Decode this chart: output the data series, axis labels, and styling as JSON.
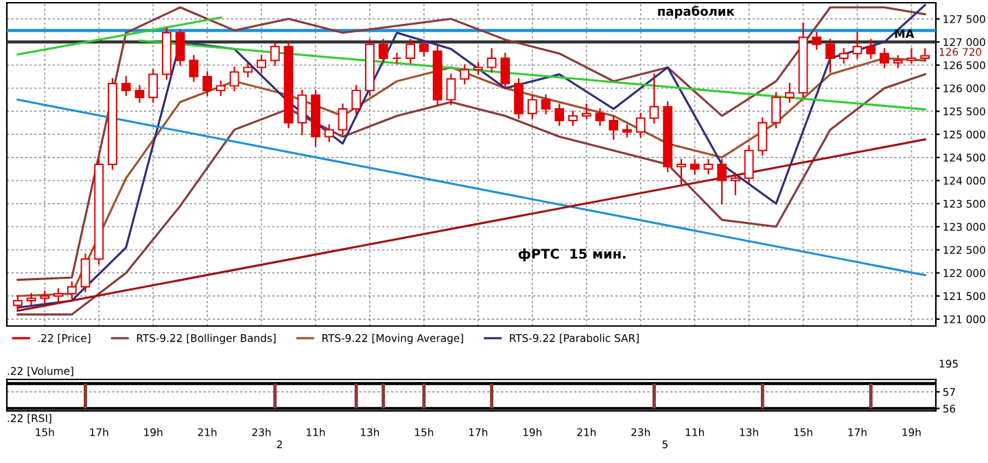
{
  "chart_data": [
    {
      "type": "candlestick",
      "categories": [
        null,
        null,
        null,
        null,
        null,
        null,
        null,
        null,
        null,
        null,
        null,
        null,
        null,
        null,
        null,
        null,
        null,
        null,
        null,
        null,
        null,
        null,
        null,
        null,
        null,
        null,
        null,
        null,
        null,
        null,
        null,
        null,
        null,
        null,
        null,
        null,
        null,
        null,
        null,
        null,
        null,
        null,
        null,
        null,
        null,
        null,
        null,
        null,
        null,
        null,
        null,
        null,
        null,
        null,
        null,
        null,
        null,
        null,
        null,
        null,
        null,
        null,
        null,
        null,
        null,
        null,
        null,
        null
      ],
      "series": [
        {
          "type": "candlestick",
          "name": ".22 [Price]",
          "color": "#e00000",
          "ohlc": [
            [
              121300,
              121500,
              121200,
              121400
            ],
            [
              121400,
              121550,
              121300,
              121450
            ],
            [
              121450,
              121600,
              121350,
              121500
            ],
            [
              121500,
              121650,
              121400,
              121550
            ],
            [
              121550,
              121800,
              121450,
              121700
            ],
            [
              121700,
              122400,
              121600,
              122300
            ],
            [
              122300,
              124450,
              122200,
              124350
            ],
            [
              124350,
              126200,
              124250,
              126100
            ],
            [
              126100,
              126250,
              125850,
              125950
            ],
            [
              125950,
              126050,
              125700,
              125800
            ],
            [
              125800,
              126400,
              125700,
              126300
            ],
            [
              126300,
              127300,
              126200,
              127200
            ],
            [
              127200,
              127250,
              126500,
              126600
            ],
            [
              126600,
              126700,
              126150,
              126250
            ],
            [
              126250,
              126350,
              125850,
              125950
            ],
            [
              125950,
              126150,
              125850,
              126050
            ],
            [
              126050,
              126450,
              125950,
              126350
            ],
            [
              126350,
              126550,
              126250,
              126450
            ],
            [
              126450,
              126700,
              126350,
              126600
            ],
            [
              126600,
              127000,
              126500,
              126900
            ],
            [
              126900,
              127000,
              125150,
              125250
            ],
            [
              125250,
              125950,
              125000,
              125850
            ],
            [
              125850,
              125950,
              124750,
              124950
            ],
            [
              124950,
              125200,
              124850,
              125100
            ],
            [
              125100,
              125650,
              125000,
              125550
            ],
            [
              125550,
              126050,
              125450,
              125950
            ],
            [
              125950,
              127050,
              125850,
              126950
            ],
            [
              126950,
              127050,
              126550,
              126650
            ],
            [
              126650,
              126750,
              126550,
              126650
            ],
            [
              126650,
              127050,
              126550,
              126950
            ],
            [
              126950,
              127000,
              126700,
              126800
            ],
            [
              126800,
              126900,
              125650,
              125750
            ],
            [
              125750,
              126300,
              125650,
              126200
            ],
            [
              126200,
              126500,
              126100,
              126400
            ],
            [
              126400,
              126550,
              126300,
              126450
            ],
            [
              126450,
              126850,
              126350,
              126650
            ],
            [
              126650,
              126750,
              126000,
              126100
            ],
            [
              126100,
              126200,
              125350,
              125450
            ],
            [
              125450,
              125850,
              125350,
              125750
            ],
            [
              125750,
              125850,
              125450,
              125550
            ],
            [
              125550,
              125650,
              125200,
              125300
            ],
            [
              125300,
              125500,
              125200,
              125400
            ],
            [
              125400,
              125650,
              125350,
              125450
            ],
            [
              125450,
              125550,
              125200,
              125300
            ],
            [
              125300,
              125400,
              124900,
              125100
            ],
            [
              125100,
              125200,
              124950,
              125050
            ],
            [
              125050,
              125450,
              124950,
              125350
            ],
            [
              125350,
              126300,
              125250,
              125600
            ],
            [
              125600,
              125700,
              124200,
              124300
            ],
            [
              124300,
              124450,
              123900,
              124350
            ],
            [
              124350,
              124450,
              124150,
              124250
            ],
            [
              124250,
              124450,
              124150,
              124350
            ],
            [
              124350,
              124450,
              123500,
              124000
            ],
            [
              124000,
              124150,
              123700,
              124050
            ],
            [
              124050,
              124750,
              123950,
              124650
            ],
            [
              124650,
              125350,
              124550,
              125250
            ],
            [
              125250,
              125900,
              125150,
              125800
            ],
            [
              125800,
              126100,
              125700,
              125900
            ],
            [
              125900,
              127400,
              125800,
              127100
            ],
            [
              127100,
              127200,
              126850,
              126950
            ],
            [
              126950,
              127050,
              126350,
              126650
            ],
            [
              126650,
              126850,
              126550,
              126750
            ],
            [
              126750,
              127200,
              126650,
              126900
            ],
            [
              126900,
              127050,
              126650,
              126750
            ],
            [
              126750,
              126850,
              126450,
              126550
            ],
            [
              126550,
              126700,
              126450,
              126600
            ],
            [
              126600,
              126850,
              126550,
              126650
            ],
            [
              126650,
              126850,
              126600,
              126700
            ]
          ]
        },
        {
          "type": "line",
          "name": "RTS-9.22 [Bollinger Bands]",
          "color": "#8b3a3a",
          "values": [
            121850,
            null,
            null,
            null,
            121900,
            null,
            null,
            null,
            127200,
            null,
            null,
            null,
            127750,
            null,
            null,
            null,
            127250,
            null,
            null,
            null,
            127500,
            null,
            null,
            null,
            127200,
            null,
            null,
            null,
            127350,
            null,
            null,
            null,
            127500,
            null,
            null,
            null,
            127050,
            null,
            null,
            null,
            126750,
            null,
            null,
            null,
            126150,
            null,
            null,
            null,
            126450,
            null,
            null,
            null,
            125400,
            null,
            null,
            null,
            126150,
            null,
            null,
            null,
            127750,
            null,
            null,
            null,
            127750,
            null,
            null,
            127600
          ]
        },
        {
          "type": "line",
          "color": "#8b3a3a",
          "values": [
            121100,
            null,
            null,
            null,
            121100,
            null,
            null,
            null,
            122000,
            null,
            null,
            null,
            123450,
            null,
            null,
            null,
            125100,
            null,
            null,
            null,
            125550,
            null,
            null,
            null,
            124950,
            null,
            null,
            null,
            125400,
            null,
            null,
            null,
            125700,
            null,
            null,
            null,
            125400,
            null,
            null,
            null,
            124950,
            null,
            null,
            null,
            124650,
            null,
            null,
            null,
            124350,
            null,
            null,
            null,
            123150,
            null,
            null,
            null,
            123000,
            null,
            null,
            null,
            125100,
            null,
            null,
            null,
            126000,
            null,
            null,
            126300
          ]
        },
        {
          "type": "line",
          "name": "RTS-9.22 [Moving Average]",
          "color": "#a0522d",
          "values": [
            121500,
            null,
            null,
            null,
            121550,
            null,
            null,
            null,
            124050,
            null,
            null,
            null,
            125700,
            null,
            null,
            null,
            126150,
            null,
            null,
            null,
            125850,
            null,
            null,
            null,
            125400,
            null,
            null,
            null,
            126150,
            null,
            null,
            null,
            126450,
            null,
            null,
            null,
            126000,
            null,
            null,
            null,
            125700,
            null,
            null,
            null,
            125400,
            null,
            null,
            null,
            124800,
            null,
            null,
            null,
            124500,
            null,
            null,
            null,
            125250,
            null,
            null,
            null,
            126300,
            null,
            null,
            null,
            126650,
            null,
            null,
            126600
          ]
        },
        {
          "type": "line",
          "name": "RTS-9.22 [Parabolic SAR]",
          "color": "#2e2e7a",
          "values": [
            121250,
            null,
            null,
            null,
            121400,
            null,
            null,
            null,
            122550,
            null,
            null,
            null,
            127000,
            null,
            null,
            null,
            126850,
            null,
            null,
            null,
            125700,
            null,
            null,
            null,
            124800,
            null,
            null,
            null,
            127200,
            null,
            null,
            null,
            126850,
            null,
            null,
            null,
            126000,
            null,
            null,
            null,
            126300,
            null,
            null,
            null,
            125550,
            null,
            null,
            null,
            126450,
            null,
            null,
            null,
            124350,
            null,
            null,
            null,
            123500,
            null,
            null,
            null,
            126650,
            null,
            null,
            null,
            127000,
            null,
            null,
            127800
          ]
        },
        {
          "type": "line",
          "color": "#1e90d8",
          "values": [
            125750,
            null,
            null,
            null,
            null,
            null,
            null,
            null,
            null,
            null,
            null,
            null,
            null,
            null,
            null,
            null,
            null,
            null,
            null,
            null,
            null,
            null,
            null,
            null,
            null,
            null,
            null,
            null,
            null,
            null,
            null,
            null,
            null,
            null,
            null,
            null,
            null,
            null,
            null,
            null,
            null,
            null,
            null,
            null,
            null,
            null,
            null,
            null,
            null,
            null,
            null,
            null,
            null,
            null,
            null,
            null,
            null,
            null,
            null,
            null,
            null,
            null,
            null,
            null,
            null,
            null,
            null,
            121950
          ]
        },
        {
          "type": "line",
          "color": "#a01010",
          "values": [
            121180,
            null,
            null,
            null,
            null,
            null,
            null,
            null,
            null,
            null,
            null,
            null,
            null,
            null,
            null,
            null,
            null,
            null,
            null,
            null,
            null,
            null,
            null,
            null,
            null,
            null,
            null,
            null,
            null,
            null,
            null,
            null,
            null,
            null,
            null,
            null,
            null,
            null,
            null,
            null,
            null,
            null,
            null,
            null,
            null,
            null,
            null,
            null,
            null,
            null,
            null,
            null,
            null,
            null,
            null,
            null,
            null,
            null,
            null,
            null,
            null,
            null,
            null,
            null,
            null,
            null,
            null,
            124890
          ]
        },
        {
          "type": "line",
          "color": "#33cc33",
          "values": [
            null,
            null,
            null,
            null,
            null,
            null,
            null,
            null,
            null,
            127030,
            null,
            null,
            null,
            null,
            null,
            null,
            null,
            null,
            null,
            null,
            null,
            null,
            null,
            null,
            null,
            null,
            null,
            null,
            null,
            null,
            null,
            null,
            null,
            null,
            null,
            null,
            null,
            null,
            null,
            null,
            null,
            null,
            null,
            null,
            null,
            null,
            null,
            null,
            null,
            null,
            null,
            null,
            null,
            null,
            null,
            null,
            null,
            null,
            null,
            null,
            null,
            null,
            null,
            null,
            null,
            null,
            null,
            125540
          ]
        },
        {
          "type": "line",
          "color": "#33cc33",
          "values": [
            126730,
            null,
            null,
            null,
            null,
            null,
            null,
            null,
            null,
            null,
            null,
            null,
            null,
            null,
            null,
            127530,
            null,
            null,
            null,
            null,
            null,
            null,
            null,
            null,
            null,
            null,
            null,
            null,
            null,
            null,
            null,
            null,
            null,
            null,
            null,
            null,
            null,
            null,
            null,
            null,
            null,
            null,
            null,
            null,
            null,
            null,
            null,
            null,
            null,
            null,
            null,
            null,
            null,
            null,
            null,
            null,
            null,
            null,
            null,
            null,
            null,
            null,
            null,
            null,
            null,
            null,
            null,
            null
          ]
        }
      ],
      "ref_lines": [
        {
          "axis": "y",
          "value": 127000,
          "color": "#333333"
        },
        {
          "axis": "y",
          "value": 127250,
          "color": "#1e90d8"
        }
      ],
      "ylim": [
        120850,
        127850
      ],
      "yticks": [
        {
          "value": 121000,
          "label": "121 000"
        },
        {
          "value": 121500,
          "label": "121 500"
        },
        {
          "value": 122000,
          "label": "122 000"
        },
        {
          "value": 122500,
          "label": "122 500"
        },
        {
          "value": 123000,
          "label": "123 000"
        },
        {
          "value": 123500,
          "label": "123 500"
        },
        {
          "value": 124000,
          "label": "124 000"
        },
        {
          "value": 124500,
          "label": "124 500"
        },
        {
          "value": 125000,
          "label": "125 000"
        },
        {
          "value": 125500,
          "label": "125 500"
        },
        {
          "value": 126000,
          "label": "126 000"
        },
        {
          "value": 126500,
          "label": "126 500"
        },
        {
          "value": 127000,
          "label": "127 000"
        },
        {
          "value": 127500,
          "label": "127 500"
        }
      ],
      "tick_labels": "y",
      "grid": true,
      "legend": "bottom",
      "annotations": [
        "фРТС  15 мин.",
        "MA",
        "параболик",
        "126 720",
        "195"
      ]
    },
    {
      "type": "bar",
      "title": ".22 [Volume]",
      "categories": [
        null,
        null,
        "15h",
        null,
        null,
        null,
        "17h",
        null,
        null,
        null,
        "19h",
        null,
        null,
        null,
        "21h",
        null,
        null,
        null,
        "23h",
        null,
        null,
        null,
        "11h",
        null,
        null,
        null,
        "13h",
        null,
        null,
        null,
        "15h",
        null,
        null,
        null,
        "17h",
        null,
        null,
        null,
        "19h",
        null,
        null,
        null,
        "21h",
        null,
        null,
        null,
        "23h",
        null,
        null,
        null,
        "11h",
        null,
        null,
        null,
        "13h",
        null,
        null,
        null,
        "15h",
        null,
        null,
        null,
        "17h",
        null,
        null,
        null,
        "19h",
        null
      ],
      "series": [
        {
          "color": "#8b3a3a",
          "values": [
            null,
            null,
            null,
            null,
            null,
            1.5,
            null,
            null,
            null,
            null,
            null,
            null,
            null,
            null,
            null,
            null,
            null,
            null,
            null,
            1.5,
            null,
            null,
            null,
            null,
            null,
            1.5,
            null,
            1.5,
            null,
            null,
            1.5,
            null,
            null,
            null,
            null,
            1.5,
            null,
            null,
            null,
            null,
            null,
            null,
            null,
            null,
            null,
            null,
            null,
            1.5,
            null,
            null,
            null,
            null,
            null,
            null,
            null,
            1.5,
            null,
            null,
            null,
            null,
            null,
            null,
            null,
            1.5,
            null,
            null,
            null,
            null
          ],
          "base": [
            null,
            null,
            null,
            null,
            null,
            56,
            null,
            null,
            null,
            null,
            null,
            null,
            null,
            null,
            null,
            null,
            null,
            null,
            null,
            56,
            null,
            null,
            null,
            null,
            null,
            56,
            null,
            56,
            null,
            null,
            56,
            null,
            null,
            null,
            null,
            56,
            null,
            null,
            null,
            null,
            null,
            null,
            null,
            null,
            null,
            null,
            null,
            56,
            null,
            null,
            null,
            null,
            null,
            null,
            null,
            56,
            null,
            null,
            null,
            null,
            null,
            null,
            null,
            56,
            null,
            null,
            null,
            null
          ]
        }
      ],
      "ref_lines": [
        {
          "axis": "y",
          "value": 56,
          "color": "#000000"
        },
        {
          "axis": "y",
          "value": 57.5,
          "color": "#000000"
        }
      ],
      "ylim": [
        55.85,
        57.75
      ],
      "yticks": [
        56,
        57
      ],
      "grid": "y",
      "annotations": [
        ".22 [RSI]",
        "2",
        "5"
      ]
    }
  ]
}
